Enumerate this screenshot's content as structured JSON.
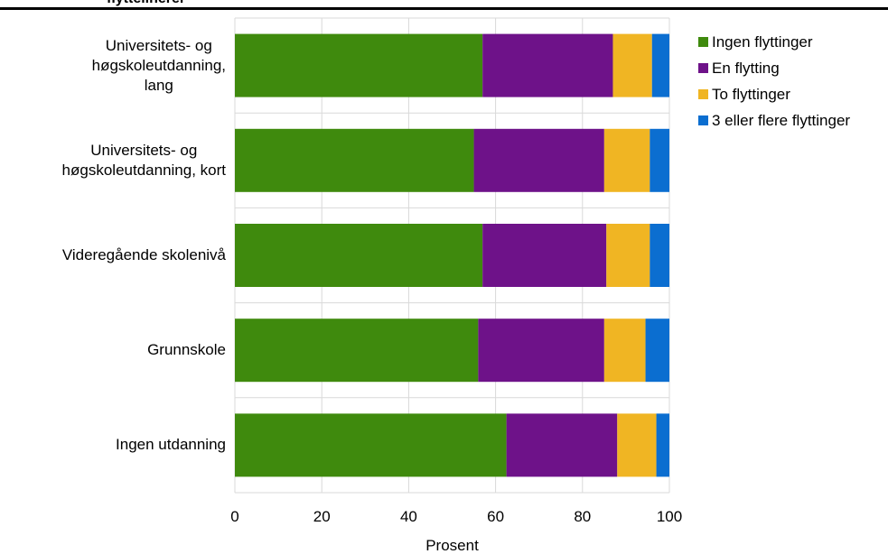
{
  "chart_data": {
    "type": "bar",
    "orientation": "horizontal",
    "stacked": true,
    "title_fragment": "flyttelinerer",
    "xlabel": "Prosent",
    "xlim": [
      0,
      100
    ],
    "xticks": [
      "0",
      "20",
      "40",
      "60",
      "80",
      "100"
    ],
    "grid": true,
    "legend_position": "top-right",
    "categories": [
      [
        "Universitets- og",
        "høgskoleutdanning,",
        "lang"
      ],
      [
        "Universitets- og",
        "høgskoleutdanning, kort"
      ],
      [
        "Videregående skolenivå"
      ],
      [
        "Grunnskole"
      ],
      [
        "Ingen utdanning"
      ]
    ],
    "series": [
      {
        "name": "Ingen flyttinger",
        "color": "#3f8a0d",
        "values": [
          57.0,
          55.0,
          57.0,
          56.0,
          62.5
        ]
      },
      {
        "name": "En flytting",
        "color": "#6e1289",
        "values": [
          30.0,
          30.0,
          28.5,
          29.0,
          25.5
        ]
      },
      {
        "name": "To flyttinger",
        "color": "#f0b523",
        "values": [
          9.0,
          10.5,
          10.0,
          9.5,
          9.0
        ]
      },
      {
        "name": "3 eller flere flyttinger",
        "color": "#0b6ed0",
        "values": [
          4.0,
          4.5,
          4.5,
          5.5,
          3.0
        ]
      }
    ]
  }
}
